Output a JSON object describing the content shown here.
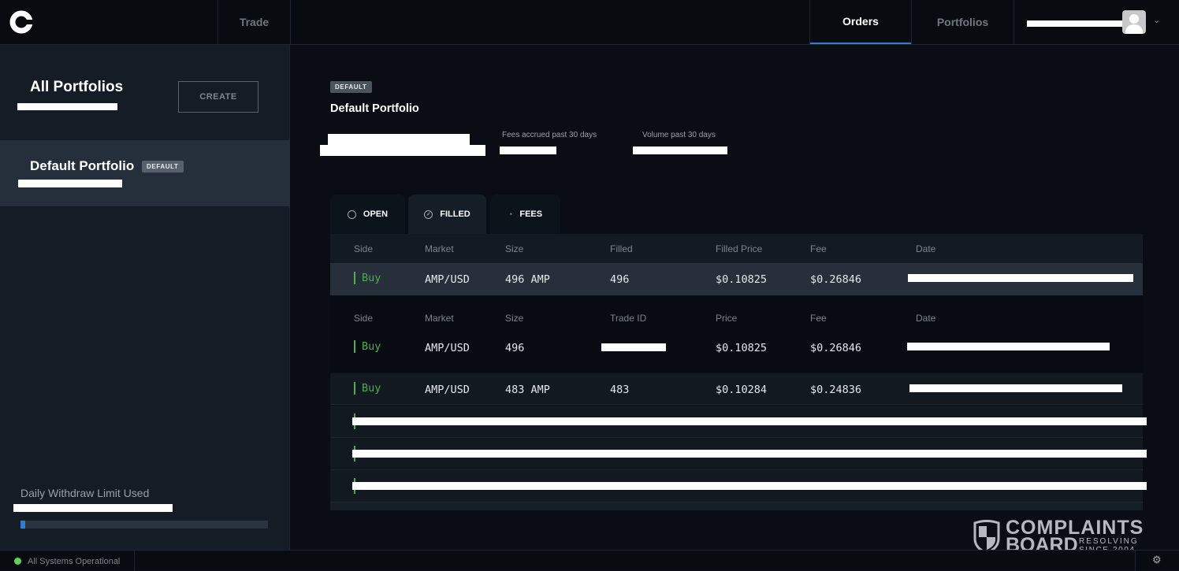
{
  "header": {
    "nav": [
      {
        "label": "Trade"
      },
      {
        "label": "Orders",
        "active": true
      },
      {
        "label": "Portfolios"
      }
    ],
    "accent": "#2d7fd3"
  },
  "sidebar": {
    "title": "All Portfolios",
    "create_label": "CREATE",
    "portfolios": [
      {
        "name": "Default Portfolio",
        "badge": "DEFAULT"
      }
    ],
    "withdraw_label": "Daily Withdraw Limit Used",
    "withdraw_progress_pct": 0.5
  },
  "main": {
    "badge": "DEFAULT",
    "title": "Default Portfolio",
    "fees_label": "Fees accrued past 30 days",
    "volume_label": "Volume past 30 days",
    "tabs": [
      {
        "label": "OPEN",
        "icon": "clock-icon"
      },
      {
        "label": "FILLED",
        "icon": "check-circle-icon",
        "active": true
      },
      {
        "label": "FEES",
        "icon": "pie-chart-icon"
      }
    ],
    "table": {
      "headers": [
        "Side",
        "Market",
        "Size",
        "Filled",
        "Filled Price",
        "Fee",
        "Date"
      ],
      "selected_row": {
        "side": "Buy",
        "market": "AMP/USD",
        "size": "496 AMP",
        "filled": "496",
        "price": "$0.10825",
        "fee": "$0.26846"
      },
      "detail_headers": [
        "Side",
        "Market",
        "Size",
        "Trade ID",
        "Price",
        "Fee",
        "Date"
      ],
      "detail_row": {
        "side": "Buy",
        "market": "AMP/USD",
        "size": "496",
        "price": "$0.10825",
        "fee": "$0.26846"
      },
      "rows": [
        {
          "side": "Buy",
          "market": "AMP/USD",
          "size": "483 AMP",
          "filled": "483",
          "price": "$0.10284",
          "fee": "$0.24836"
        }
      ]
    },
    "buy_color": "#4caf50"
  },
  "watermark": {
    "line1": "COMPLAINTS",
    "line2": "BOARD",
    "tag1": "RESOLVING",
    "tag2": "SINCE 2004"
  },
  "footer": {
    "status": "All Systems Operational",
    "status_color": "#5fd35f"
  }
}
